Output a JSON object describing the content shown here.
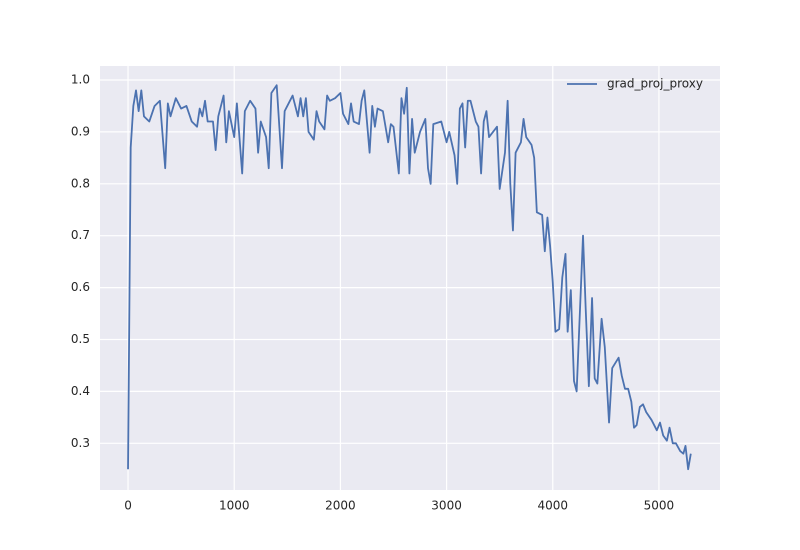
{
  "chart_data": {
    "type": "line",
    "x": [
      0,
      25,
      50,
      75,
      100,
      125,
      150,
      200,
      250,
      300,
      350,
      375,
      400,
      450,
      500,
      550,
      600,
      650,
      675,
      700,
      725,
      750,
      800,
      825,
      850,
      900,
      925,
      950,
      1000,
      1025,
      1075,
      1100,
      1150,
      1200,
      1225,
      1250,
      1300,
      1325,
      1350,
      1400,
      1450,
      1475,
      1500,
      1550,
      1600,
      1625,
      1650,
      1675,
      1700,
      1750,
      1775,
      1800,
      1850,
      1875,
      1900,
      1950,
      2000,
      2025,
      2075,
      2100,
      2125,
      2175,
      2200,
      2225,
      2275,
      2300,
      2325,
      2350,
      2400,
      2450,
      2475,
      2500,
      2550,
      2575,
      2600,
      2625,
      2650,
      2675,
      2700,
      2750,
      2800,
      2825,
      2850,
      2875,
      2950,
      3000,
      3025,
      3075,
      3100,
      3125,
      3150,
      3175,
      3200,
      3225,
      3275,
      3300,
      3325,
      3350,
      3375,
      3400,
      3475,
      3500,
      3550,
      3575,
      3600,
      3625,
      3650,
      3700,
      3725,
      3750,
      3800,
      3825,
      3850,
      3900,
      3925,
      3950,
      3975,
      4000,
      4025,
      4060,
      4090,
      4120,
      4140,
      4170,
      4200,
      4225,
      4285,
      4310,
      4340,
      4370,
      4395,
      4420,
      4460,
      4490,
      4530,
      4560,
      4620,
      4650,
      4680,
      4710,
      4740,
      4765,
      4790,
      4820,
      4850,
      4880,
      4930,
      4980,
      5010,
      5040,
      5075,
      5100,
      5130,
      5160,
      5200,
      5230,
      5250,
      5275,
      5300
    ],
    "series": [
      {
        "name": "grad_proj_proxy",
        "color": "#4c72b0",
        "values": [
          0.25,
          0.87,
          0.95,
          0.98,
          0.94,
          0.98,
          0.93,
          0.92,
          0.95,
          0.96,
          0.83,
          0.955,
          0.93,
          0.965,
          0.945,
          0.95,
          0.92,
          0.91,
          0.945,
          0.93,
          0.96,
          0.92,
          0.92,
          0.865,
          0.93,
          0.97,
          0.88,
          0.94,
          0.89,
          0.955,
          0.82,
          0.94,
          0.96,
          0.945,
          0.86,
          0.92,
          0.89,
          0.83,
          0.975,
          0.99,
          0.83,
          0.94,
          0.95,
          0.97,
          0.93,
          0.965,
          0.93,
          0.965,
          0.9,
          0.885,
          0.94,
          0.92,
          0.905,
          0.97,
          0.96,
          0.965,
          0.975,
          0.935,
          0.915,
          0.955,
          0.92,
          0.915,
          0.96,
          0.98,
          0.86,
          0.95,
          0.91,
          0.945,
          0.94,
          0.88,
          0.915,
          0.91,
          0.82,
          0.965,
          0.935,
          0.985,
          0.82,
          0.925,
          0.86,
          0.9,
          0.925,
          0.83,
          0.8,
          0.915,
          0.92,
          0.88,
          0.9,
          0.855,
          0.8,
          0.945,
          0.955,
          0.87,
          0.96,
          0.96,
          0.92,
          0.91,
          0.82,
          0.92,
          0.94,
          0.89,
          0.91,
          0.79,
          0.86,
          0.96,
          0.8,
          0.71,
          0.86,
          0.88,
          0.925,
          0.89,
          0.875,
          0.85,
          0.745,
          0.74,
          0.67,
          0.735,
          0.68,
          0.61,
          0.515,
          0.52,
          0.62,
          0.665,
          0.515,
          0.595,
          0.42,
          0.4,
          0.7,
          0.56,
          0.41,
          0.58,
          0.425,
          0.415,
          0.54,
          0.485,
          0.34,
          0.445,
          0.465,
          0.43,
          0.405,
          0.405,
          0.38,
          0.33,
          0.335,
          0.37,
          0.375,
          0.36,
          0.345,
          0.325,
          0.34,
          0.315,
          0.305,
          0.33,
          0.3,
          0.3,
          0.285,
          0.28,
          0.295,
          0.25,
          0.28
        ]
      }
    ],
    "xlim": [
      -264,
      5575
    ],
    "ylim": [
      0.21,
      1.027
    ],
    "xticks": [
      0,
      1000,
      2000,
      3000,
      4000,
      5000
    ],
    "yticks": [
      0.3,
      0.4,
      0.5,
      0.6,
      0.7,
      0.8,
      0.9,
      {
        "value": 1.0,
        "label": "1.0"
      }
    ],
    "grid": true,
    "legend": "upper right"
  }
}
